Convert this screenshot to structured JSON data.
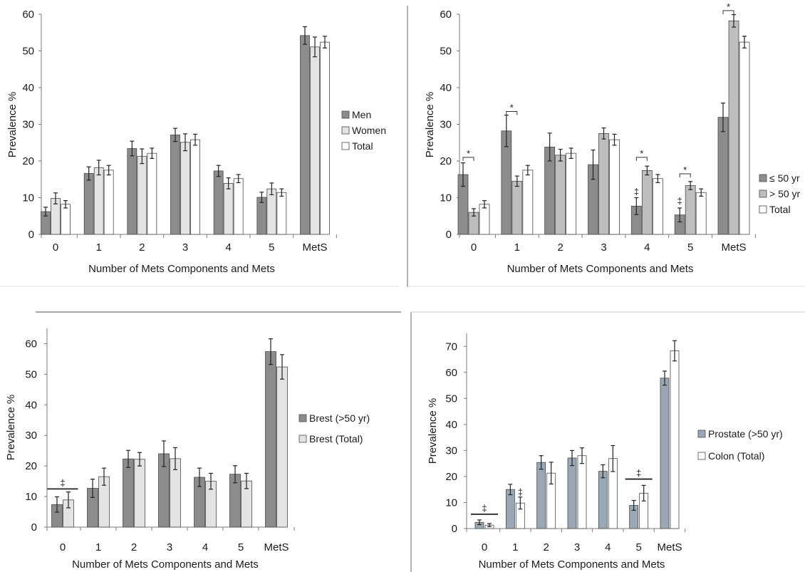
{
  "colors": {
    "dark": "#8c8c8c",
    "mid": "#bebebe",
    "light": "#e3e3e3",
    "white": "#ffffff",
    "blue": "#9aa7b4",
    "stroke": "#4a4a4a"
  },
  "chart_data": [
    {
      "type": "bar",
      "categories": [
        "0",
        "1",
        "2",
        "3",
        "4",
        "5",
        "MetS"
      ],
      "xlabel": "Number of Mets Components and Mets",
      "ylabel": "Prevalence %",
      "ylim": [
        0,
        60
      ],
      "yticks": [
        0,
        10,
        20,
        30,
        40,
        50,
        60
      ],
      "legend_position": "right",
      "series": [
        {
          "name": "Men",
          "color": "dark",
          "values": [
            6.2,
            16.6,
            23.4,
            27.1,
            17.3,
            10.1,
            54.2
          ],
          "errors": [
            1.2,
            1.8,
            2,
            1.8,
            1.5,
            1.4,
            2.4
          ]
        },
        {
          "name": "Women",
          "color": "light",
          "values": [
            9.8,
            18.2,
            21.3,
            25.1,
            13.9,
            12.4,
            51.1
          ],
          "errors": [
            1.5,
            2,
            2,
            2.3,
            1.5,
            1.6,
            2.7
          ]
        },
        {
          "name": "Total",
          "color": "white",
          "values": [
            8.2,
            17.5,
            22.1,
            25.8,
            15.2,
            11.4,
            52.4
          ],
          "errors": [
            1,
            1.3,
            1.4,
            1.5,
            1.1,
            1,
            1.6
          ]
        }
      ],
      "annotations": []
    },
    {
      "type": "bar",
      "categories": [
        "0",
        "1",
        "2",
        "3",
        "4",
        "5",
        "MetS"
      ],
      "xlabel": "Number of Mets Components and Mets",
      "ylabel": "Prevalence %",
      "ylim": [
        0,
        60
      ],
      "yticks": [
        0,
        10,
        20,
        30,
        40,
        50,
        60
      ],
      "legend_position": "right",
      "series": [
        {
          "name": "≤ 50 yr",
          "color": "dark",
          "values": [
            16.3,
            28.2,
            23.8,
            19,
            7.7,
            5.3,
            31.9
          ],
          "errors": [
            3.2,
            4.3,
            3.8,
            4,
            2.3,
            1.9,
            3.9
          ]
        },
        {
          "name": "> 50 yr",
          "color": "mid",
          "values": [
            6,
            14.5,
            21.6,
            27.5,
            17.4,
            13.3,
            58.2
          ],
          "errors": [
            1,
            1.4,
            1.6,
            1.5,
            1.2,
            1.1,
            1.7
          ]
        },
        {
          "name": "Total",
          "color": "white",
          "values": [
            8.2,
            17.5,
            22.1,
            25.8,
            15.2,
            11.4,
            52.4
          ],
          "errors": [
            1,
            1.3,
            1.4,
            1.5,
            1.1,
            1,
            1.6
          ]
        }
      ],
      "annotations": [
        {
          "type": "bracket",
          "category": 0,
          "from": 0,
          "to": 1,
          "y": 21,
          "text": "*"
        },
        {
          "type": "bracket",
          "category": 1,
          "from": 0,
          "to": 1,
          "y": 33.5,
          "text": "*"
        },
        {
          "type": "bracket",
          "category": 4,
          "from": 0,
          "to": 1,
          "y": 21,
          "text": "*"
        },
        {
          "type": "bracket",
          "category": 5,
          "from": 0,
          "to": 1,
          "y": 16.5,
          "text": "*"
        },
        {
          "type": "bracket",
          "category": 6,
          "from": 0,
          "to": 1,
          "y": 61,
          "text": "*"
        },
        {
          "type": "mark",
          "category": 4,
          "series": 0,
          "y": 10.8,
          "text": "‡"
        },
        {
          "type": "mark",
          "category": 5,
          "series": 0,
          "y": 8.3,
          "text": "‡"
        }
      ]
    },
    {
      "type": "bar",
      "categories": [
        "0",
        "1",
        "2",
        "3",
        "4",
        "5",
        "MetS"
      ],
      "xlabel": "Number of Mets Components and Mets",
      "ylabel": "Prevalence %",
      "ylim": [
        0,
        65
      ],
      "yticks": [
        0,
        10,
        20,
        30,
        40,
        50,
        60
      ],
      "legend_position": "right",
      "series": [
        {
          "name": "Brest (>50 yr)",
          "color": "dark",
          "values": [
            7.4,
            12.7,
            22.3,
            24,
            16.3,
            17.3,
            57.4
          ],
          "errors": [
            2.5,
            3,
            2.8,
            4.2,
            3,
            2.8,
            4.2
          ]
        },
        {
          "name": "Brest (Total)",
          "color": "light",
          "values": [
            8.9,
            16.5,
            22.2,
            22.4,
            15,
            15.1,
            52.4
          ],
          "errors": [
            2.6,
            2.8,
            2.2,
            3.6,
            2.6,
            2.5,
            4
          ]
        }
      ],
      "annotations": [
        {
          "type": "line",
          "category": 0,
          "y": 12.5,
          "text": "‡"
        }
      ]
    },
    {
      "type": "bar",
      "categories": [
        "0",
        "1",
        "2",
        "3",
        "4",
        "5",
        "MetS"
      ],
      "xlabel": "Number of Mets Components and Mets",
      "ylabel": "Prevalence %",
      "ylim": [
        0,
        75
      ],
      "yticks": [
        0,
        10,
        20,
        30,
        40,
        50,
        60,
        70
      ],
      "legend_position": "right",
      "series": [
        {
          "name": "Prostate (>50 yr)",
          "color": "blue",
          "values": [
            2.4,
            15,
            25.4,
            27.1,
            22,
            8.9,
            57.8
          ],
          "errors": [
            0.9,
            2,
            2.6,
            2.9,
            2.5,
            1.9,
            2.7
          ]
        },
        {
          "name": "Colon (Total)",
          "color": "white",
          "values": [
            1.3,
            9.8,
            21.3,
            28,
            26.9,
            13.6,
            68.3
          ],
          "errors": [
            0.6,
            2.3,
            4.2,
            3,
            5,
            3,
            3.9
          ]
        }
      ],
      "annotations": [
        {
          "type": "line",
          "category": 0,
          "y": 5.5,
          "text": "‡"
        },
        {
          "type": "line",
          "category": 5,
          "y": 19,
          "text": "‡"
        },
        {
          "type": "mark",
          "category": 1,
          "series": 1,
          "y": 12.8,
          "text": "‡"
        }
      ]
    }
  ]
}
